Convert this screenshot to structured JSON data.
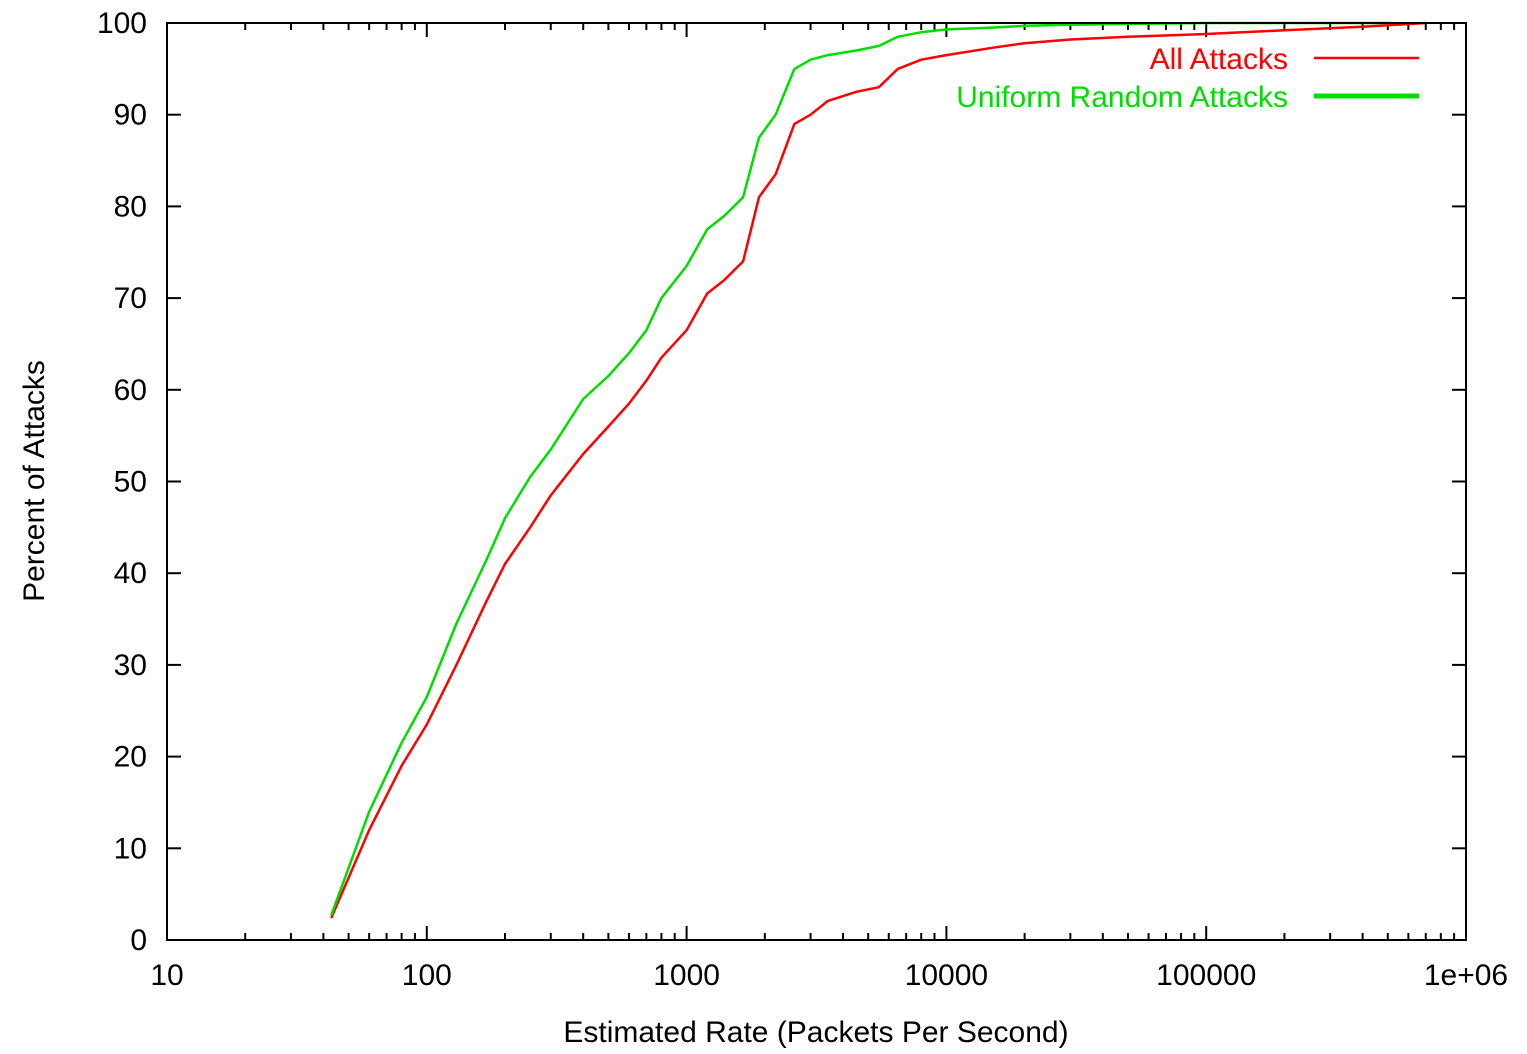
{
  "chart_data": {
    "type": "line",
    "title": "",
    "xlabel": "Estimated Rate (Packets Per Second)",
    "ylabel": "Percent of Attacks",
    "x_scale": "log",
    "xlim": [
      10,
      1000000
    ],
    "ylim": [
      0,
      100
    ],
    "x_ticks": [
      10,
      100,
      1000,
      10000,
      100000,
      1000000
    ],
    "x_tick_labels": [
      "10",
      "100",
      "1000",
      "10000",
      "100000",
      "1e+06"
    ],
    "y_ticks": [
      0,
      10,
      20,
      30,
      40,
      50,
      60,
      70,
      80,
      90,
      100
    ],
    "y_tick_labels": [
      "0",
      "10",
      "20",
      "30",
      "40",
      "50",
      "60",
      "70",
      "80",
      "90",
      "100"
    ],
    "grid": false,
    "legend_position": "top-right",
    "series": [
      {
        "name": "All Attacks",
        "color": "#ff0000",
        "x": [
          43,
          60,
          80,
          100,
          130,
          170,
          200,
          250,
          300,
          400,
          500,
          600,
          700,
          800,
          1000,
          1200,
          1400,
          1650,
          1900,
          2200,
          2600,
          3000,
          3500,
          4500,
          5500,
          6500,
          8000,
          10000,
          15000,
          20000,
          30000,
          50000,
          100000,
          200000,
          400000,
          700000
        ],
        "y": [
          2.5,
          12,
          19,
          23.5,
          30,
          37,
          41,
          45,
          48.5,
          53,
          56,
          58.5,
          61,
          63.5,
          66.5,
          70.5,
          72,
          74,
          81,
          83.5,
          89,
          90,
          91.5,
          92.5,
          93,
          95,
          96,
          96.5,
          97.3,
          97.8,
          98.2,
          98.5,
          98.8,
          99.2,
          99.6,
          100
        ]
      },
      {
        "name": "Uniform Random Attacks",
        "color": "#00dd00",
        "x": [
          43,
          60,
          80,
          100,
          130,
          170,
          200,
          250,
          300,
          400,
          500,
          600,
          700,
          800,
          1000,
          1200,
          1400,
          1650,
          1900,
          2200,
          2600,
          3000,
          3500,
          4500,
          5500,
          6500,
          8000,
          10000,
          15000,
          20000,
          30000,
          50000,
          100000,
          200000,
          500000
        ],
        "y": [
          2.8,
          14,
          21.5,
          26.5,
          34.5,
          41.5,
          46,
          50.5,
          53.5,
          59,
          61.5,
          64,
          66.5,
          70,
          73.5,
          77.5,
          79,
          81,
          87.5,
          90,
          95,
          96,
          96.5,
          97,
          97.5,
          98.5,
          99,
          99.3,
          99.5,
          99.7,
          99.8,
          99.9,
          100,
          100,
          100
        ]
      }
    ]
  }
}
